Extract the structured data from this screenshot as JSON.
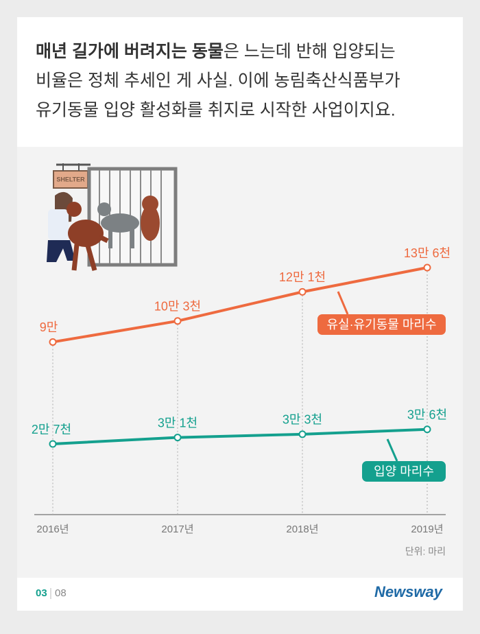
{
  "headline": {
    "bold": "매년 길가에 버려지는 동물",
    "lines": [
      "은 느는데 반해 입양되는",
      "비율은 정체 추세인 게 사실. 이에 농림축산식품부가",
      "유기동물 입양 활성화를 취지로 시작한 사업이지요."
    ]
  },
  "illustration_sign": "SHELTER",
  "chart_data": {
    "type": "line",
    "categories": [
      "2016년",
      "2017년",
      "2018년",
      "2019년"
    ],
    "series": [
      {
        "name": "유실·유기동물 마리수",
        "color": "#ee6a3f",
        "values": [
          90000,
          103000,
          121000,
          136000
        ],
        "value_labels": [
          "9만",
          "10만 3천",
          "12만 1천",
          "13만 6천"
        ]
      },
      {
        "name": "입양 마리수",
        "color": "#14a08e",
        "values": [
          27000,
          31000,
          33000,
          36000
        ],
        "value_labels": [
          "2만 7천",
          "3만 1천",
          "3만 3천",
          "3만 6천"
        ]
      }
    ],
    "unit_note": "단위: 마리"
  },
  "page": {
    "current": "03",
    "total": "08"
  },
  "brand": "Newsway"
}
